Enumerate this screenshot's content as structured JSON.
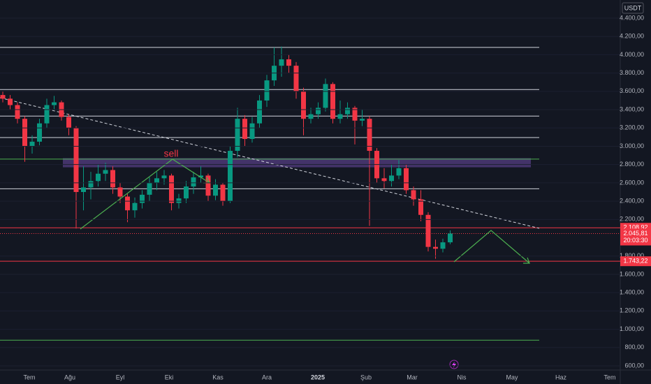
{
  "chart_data": {
    "type": "candlestick",
    "currency": "USDT",
    "annotation": "sell",
    "x_labels": [
      "Tem",
      "Ağu",
      "Eyl",
      "Eki",
      "Kas",
      "Ara",
      "2025",
      "Şub",
      "Mar",
      "Nis",
      "May",
      "Haz",
      "Tem"
    ],
    "up_color": "#089981",
    "down_color": "#f23645",
    "open": [
      3560,
      3520,
      3450,
      3300,
      3000,
      3050,
      3250,
      3450,
      3480,
      3320,
      3200,
      2500,
      2550,
      2620,
      2700,
      2740,
      2550,
      2450,
      2300,
      2380,
      2470,
      2600,
      2650,
      2680,
      2380,
      2430,
      2560,
      2660,
      2680,
      2460,
      2580,
      2400,
      2950,
      3300,
      3080,
      3250,
      3500,
      3720,
      3880,
      3950,
      3880,
      3600,
      3300,
      3350,
      3420,
      3680,
      3300,
      3350,
      3420,
      3280,
      3300,
      2950,
      2650,
      2620,
      2680,
      2760,
      2520,
      2420,
      2250,
      1900,
      1880,
      1950
    ],
    "high": [
      3600,
      3560,
      3480,
      3330,
      3120,
      3300,
      3520,
      3550,
      3500,
      3350,
      3220,
      2780,
      2720,
      2800,
      2820,
      2780,
      2600,
      2480,
      2440,
      2520,
      2660,
      2720,
      2740,
      2700,
      2480,
      2620,
      2720,
      2780,
      2700,
      2640,
      2600,
      3000,
      3420,
      3340,
      3320,
      3560,
      3780,
      4080,
      4090,
      4000,
      3920,
      3640,
      3420,
      3480,
      3740,
      3700,
      3500,
      3480,
      3440,
      3400,
      3330,
      2980,
      2760,
      2800,
      2850,
      2800,
      2560,
      2520,
      2280,
      1980,
      1990,
      2080
    ],
    "low": [
      3480,
      3400,
      3250,
      2830,
      2920,
      3010,
      3200,
      3400,
      3280,
      3120,
      2100,
      2300,
      2420,
      2560,
      2620,
      2480,
      2380,
      2170,
      2220,
      2320,
      2400,
      2520,
      2580,
      2300,
      2320,
      2380,
      2480,
      2600,
      2400,
      2410,
      2350,
      2380,
      2880,
      3000,
      3040,
      3200,
      3430,
      3660,
      3760,
      3800,
      3520,
      3120,
      3250,
      3300,
      3380,
      3250,
      3250,
      3300,
      3020,
      3220,
      2130,
      2600,
      2540,
      2560,
      2640,
      2480,
      2350,
      2180,
      1850,
      1770,
      1840,
      1930
    ],
    "close": [
      3520,
      3450,
      3300,
      3000,
      3050,
      3250,
      3450,
      3480,
      3320,
      3200,
      2500,
      2550,
      2620,
      2700,
      2740,
      2550,
      2450,
      2300,
      2380,
      2470,
      2600,
      2650,
      2680,
      2380,
      2430,
      2560,
      2660,
      2680,
      2460,
      2580,
      2400,
      2950,
      3300,
      3080,
      3250,
      3500,
      3720,
      3880,
      3950,
      3880,
      3600,
      3300,
      3350,
      3420,
      3680,
      3300,
      3350,
      3420,
      3280,
      3300,
      2950,
      2650,
      2620,
      2680,
      2760,
      2520,
      2420,
      2250,
      1900,
      1880,
      1950,
      2045.81
    ],
    "ylim": [
      600,
      4400
    ],
    "yticks": [
      {
        "value": 4400,
        "label": "4.400,00"
      },
      {
        "value": 4200,
        "label": "4.200,00"
      },
      {
        "value": 4000,
        "label": "4.000,00"
      },
      {
        "value": 3800,
        "label": "3.800,00"
      },
      {
        "value": 3600,
        "label": "3.600,00"
      },
      {
        "value": 3400,
        "label": "3.400,00"
      },
      {
        "value": 3200,
        "label": "3.200,00"
      },
      {
        "value": 3000,
        "label": "3.000,00"
      },
      {
        "value": 2800,
        "label": "2.800,00"
      },
      {
        "value": 2600,
        "label": "2.600,00"
      },
      {
        "value": 2400,
        "label": "2.400,00"
      },
      {
        "value": 2200,
        "label": "2.200,00"
      },
      {
        "value": 1800,
        "label": "1.800,00"
      },
      {
        "value": 1600,
        "label": "1.600,00"
      },
      {
        "value": 1400,
        "label": "1.400,00"
      },
      {
        "value": 1200,
        "label": "1.200,00"
      },
      {
        "value": 1000,
        "label": "1.000,00"
      },
      {
        "value": 800,
        "label": "800,00"
      },
      {
        "value": 600,
        "label": "600,00"
      }
    ],
    "levels": [
      {
        "value": 4080,
        "color": "#d1d4dc"
      },
      {
        "value": 3620,
        "color": "#d1d4dc"
      },
      {
        "value": 3330,
        "color": "#d1d4dc"
      },
      {
        "value": 3095,
        "color": "#d1d4dc"
      },
      {
        "value": 2535,
        "color": "#d1d4dc"
      },
      {
        "value": 2860,
        "color": "#4caf50"
      },
      {
        "value": 880,
        "color": "#4caf50"
      }
    ],
    "zone": [
      2770,
      2870
    ],
    "zone_color": "#7e57c2",
    "price_tags": [
      {
        "value": 2108.92,
        "label": "2.108,92",
        "color": "#f23645"
      },
      {
        "value": 2045.81,
        "label": "2.045,81",
        "color": "#f23645",
        "countdown": "20:03:30"
      },
      {
        "value": 1743.22,
        "label": "1.743,22",
        "color": "#f23645"
      }
    ]
  }
}
